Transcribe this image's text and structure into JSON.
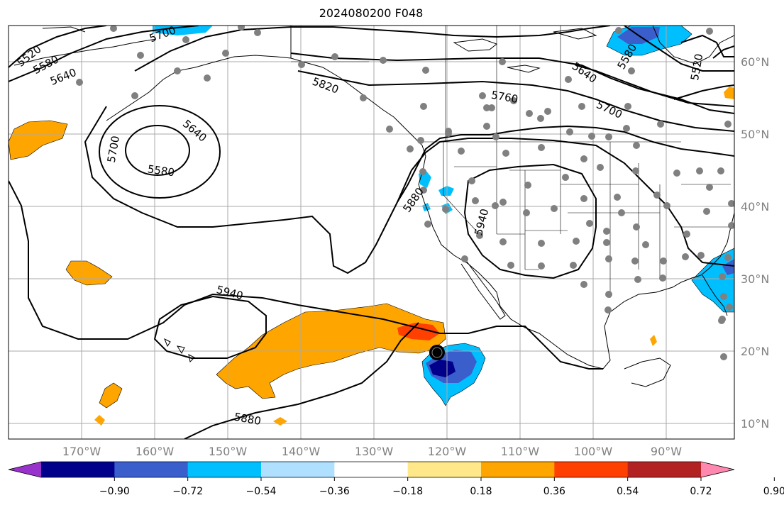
{
  "title": "2024080200 F048",
  "lat_labels": [
    "60°N",
    "50°N",
    "40°N",
    "30°N",
    "20°N",
    "10°N"
  ],
  "lon_labels": [
    "170°W",
    "160°W",
    "150°W",
    "140°W",
    "130°W",
    "120°W",
    "110°W",
    "100°W",
    "90°W"
  ],
  "contour_labels": [
    {
      "text": "5520"
    },
    {
      "text": "5580"
    },
    {
      "text": "5640"
    },
    {
      "text": "5700"
    },
    {
      "text": "5820"
    },
    {
      "text": "5760"
    },
    {
      "text": "5640"
    },
    {
      "text": "5700"
    },
    {
      "text": "5580"
    },
    {
      "text": "5520"
    },
    {
      "text": "5640"
    },
    {
      "text": "5700"
    },
    {
      "text": "5580"
    },
    {
      "text": "5880"
    },
    {
      "text": "5940"
    },
    {
      "text": "5940"
    },
    {
      "text": "5880"
    }
  ],
  "colorbar": {
    "tick_labels": [
      "−0.90",
      "−0.72",
      "−0.54",
      "−0.36",
      "−0.18",
      "0.18",
      "0.36",
      "0.54",
      "0.72",
      "0.90"
    ],
    "colors": [
      "#9932cc",
      "#00008b",
      "#3a5fcd",
      "#00bfff",
      "#b0e0ff",
      "#ffffff",
      "#ffe88a",
      "#ffa500",
      "#ff4000",
      "#b22222",
      "#ff88b0"
    ]
  }
}
